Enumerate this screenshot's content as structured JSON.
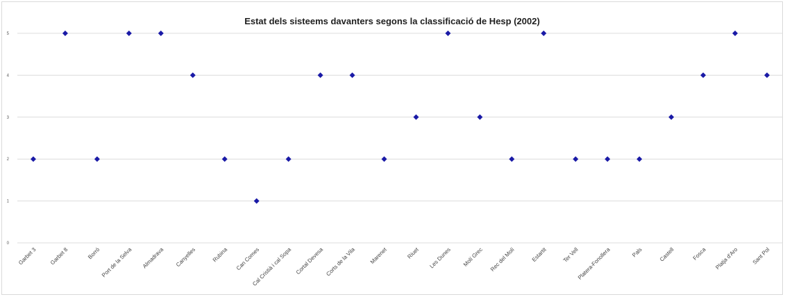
{
  "chart_data": {
    "type": "scatter",
    "title": "Estat dels sisteems davanters segons la classificació de Hesp (2002)",
    "xlabel": "",
    "ylabel": "",
    "ylim": [
      0,
      5
    ],
    "yticks": [
      "0",
      "1",
      "2",
      "3",
      "4",
      "5"
    ],
    "grid": true,
    "legend": "none",
    "categories": [
      "Garbet 3",
      "Garbet 8",
      "Borró",
      "Port de la Selva",
      "Almadrava",
      "Canyelles",
      "Rubina",
      "Can Comes",
      "Cal Cristià i cal Sopa",
      "Cortal Devesa",
      "Corts de la Vila",
      "Marenet",
      "Riuet",
      "Les Dunes",
      "Molí Grec",
      "Rec del Molí",
      "Estartit",
      "Ter Vell",
      "Platera-Fonollera",
      "Pals",
      "Castell",
      "Fosca",
      "Platja d'Aro",
      "Sant Pol"
    ],
    "values": [
      2,
      5,
      2,
      5,
      5,
      4,
      2,
      1,
      2,
      4,
      4,
      2,
      3,
      5,
      3,
      2,
      5,
      2,
      2,
      2,
      3,
      4,
      5,
      4
    ],
    "colors": {
      "point": "#1a1aa6",
      "grid": "#dcdcdc"
    }
  }
}
